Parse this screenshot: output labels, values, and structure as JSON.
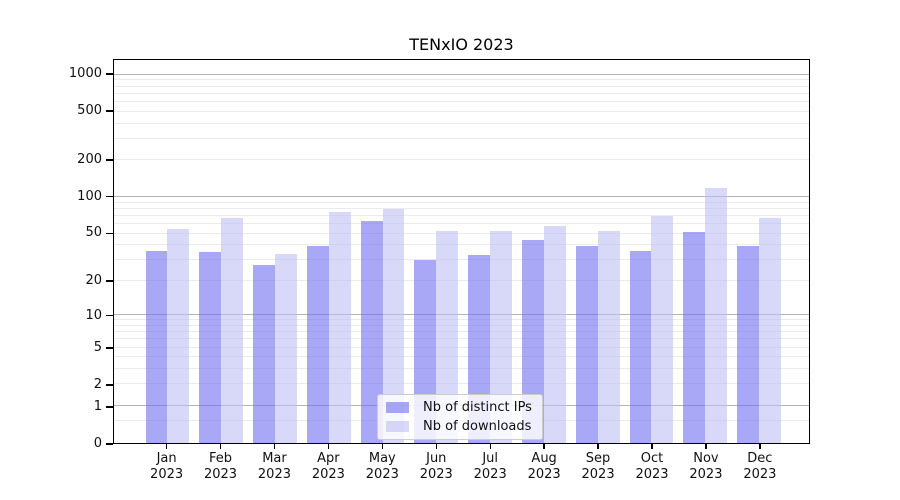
{
  "title": "TENxIO 2023",
  "chart_data": {
    "type": "bar",
    "title": "TENxIO 2023",
    "xlabel": "",
    "ylabel": "",
    "scale": "log1p",
    "ylim": [
      0,
      1322
    ],
    "grid": "on",
    "legend_position": "lower center",
    "categories": [
      "Jan\n2023",
      "Feb\n2023",
      "Mar\n2023",
      "Apr\n2023",
      "May\n2023",
      "Jun\n2023",
      "Jul\n2023",
      "Aug\n2023",
      "Sep\n2023",
      "Oct\n2023",
      "Nov\n2023",
      "Dec\n2023"
    ],
    "series": [
      {
        "name": "Nb of distinct IPs",
        "color": "rgba(110,110,240,0.6)",
        "color_hex_on_white": "#a8a8f6",
        "values": [
          36,
          35,
          27,
          39,
          64,
          30,
          33,
          44,
          39,
          36,
          51,
          39
        ]
      },
      {
        "name": "Nb of downloads",
        "color": "rgba(190,190,243,0.6)",
        "color_hex_on_white": "#d8d8f8",
        "values": [
          55,
          67,
          34,
          75,
          80,
          52,
          52,
          58,
          52,
          70,
          118,
          67
        ]
      }
    ],
    "yticks": [
      {
        "value": 0,
        "label": "0"
      },
      {
        "value": 1,
        "label": "1"
      },
      {
        "value": 2,
        "label": "2"
      },
      {
        "value": 5,
        "label": "5"
      },
      {
        "value": 10,
        "label": "10"
      },
      {
        "value": 20,
        "label": "20"
      },
      {
        "value": 50,
        "label": "50"
      },
      {
        "value": 100,
        "label": "100"
      },
      {
        "value": 200,
        "label": "200"
      },
      {
        "value": 500,
        "label": "500"
      },
      {
        "value": 1000,
        "label": "1000"
      }
    ],
    "grid_major": [
      1,
      10,
      100,
      1000
    ],
    "grid_minor": [
      0.5,
      2,
      3,
      4,
      5,
      6,
      7,
      8,
      9,
      20,
      30,
      40,
      50,
      60,
      70,
      80,
      90,
      200,
      300,
      400,
      500,
      600,
      700,
      800,
      900
    ],
    "grid_major_color": "#b4b4b4",
    "grid_minor_color": "#ebebeb"
  }
}
